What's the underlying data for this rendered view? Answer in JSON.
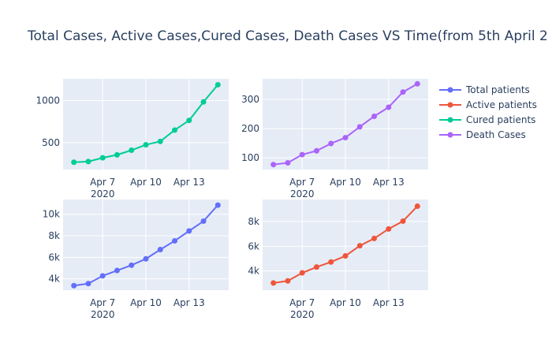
{
  "title": "Total Cases, Active Cases,Cured Cases, Death Cases VS Time(from 5th April 2",
  "legend": [
    {
      "name": "Total patients",
      "color": "#636efa"
    },
    {
      "name": "Active patients",
      "color": "#ef553b"
    },
    {
      "name": "Cured patients",
      "color": "#00cc96"
    },
    {
      "name": "Death Cases",
      "color": "#ab63fa"
    }
  ],
  "chart_data": [
    {
      "type": "line",
      "series": [
        {
          "name": "Cured patients",
          "color": "#00cc96"
        }
      ],
      "x": [
        "2020-04-05",
        "2020-04-06",
        "2020-04-07",
        "2020-04-08",
        "2020-04-09",
        "2020-04-10",
        "2020-04-11",
        "2020-04-12",
        "2020-04-13",
        "2020-04-14",
        "2020-04-15"
      ],
      "values": [
        267,
        275,
        320,
        355,
        410,
        475,
        515,
        650,
        765,
        985,
        1190
      ],
      "ylim": [
        180,
        1260
      ],
      "yticks": [
        500,
        1000
      ],
      "ytick_labels": [
        "500",
        "1000"
      ],
      "xticks": [
        "2020-04-07",
        "2020-04-10",
        "2020-04-13"
      ],
      "xtick_labels": [
        "Apr 7",
        "Apr 10",
        "Apr 13"
      ],
      "xtick_year": "2020",
      "grid": true,
      "legend": "right"
    },
    {
      "type": "line",
      "series": [
        {
          "name": "Death Cases",
          "color": "#ab63fa"
        }
      ],
      "x": [
        "2020-04-05",
        "2020-04-06",
        "2020-04-07",
        "2020-04-08",
        "2020-04-09",
        "2020-04-10",
        "2020-04-11",
        "2020-04-12",
        "2020-04-13",
        "2020-04-14",
        "2020-04-15"
      ],
      "values": [
        77,
        83,
        111,
        124,
        149,
        169,
        206,
        242,
        273,
        325,
        353
      ],
      "ylim": [
        60,
        370
      ],
      "yticks": [
        100,
        200,
        300
      ],
      "ytick_labels": [
        "100",
        "200",
        "300"
      ],
      "xticks": [
        "2020-04-07",
        "2020-04-10",
        "2020-04-13"
      ],
      "xtick_labels": [
        "Apr 7",
        "Apr 10",
        "Apr 13"
      ],
      "xtick_year": "2020",
      "grid": true,
      "legend": "right"
    },
    {
      "type": "line",
      "series": [
        {
          "name": "Total patients",
          "color": "#636efa"
        }
      ],
      "x": [
        "2020-04-05",
        "2020-04-06",
        "2020-04-07",
        "2020-04-08",
        "2020-04-09",
        "2020-04-10",
        "2020-04-11",
        "2020-04-12",
        "2020-04-13",
        "2020-04-14",
        "2020-04-15"
      ],
      "values": [
        3370,
        3560,
        4280,
        4780,
        5270,
        5860,
        6720,
        7530,
        8450,
        9360,
        10850
      ],
      "ylim": [
        2950,
        11370
      ],
      "yticks": [
        4000,
        6000,
        8000,
        10000
      ],
      "ytick_labels": [
        "4k",
        "6k",
        "8k",
        "10k"
      ],
      "xticks": [
        "2020-04-07",
        "2020-04-10",
        "2020-04-13"
      ],
      "xtick_labels": [
        "Apr 7",
        "Apr 10",
        "Apr 13"
      ],
      "xtick_year": "2020",
      "grid": true,
      "legend": "right"
    },
    {
      "type": "line",
      "series": [
        {
          "name": "Active patients",
          "color": "#ef553b"
        }
      ],
      "x": [
        "2020-04-05",
        "2020-04-06",
        "2020-04-07",
        "2020-04-08",
        "2020-04-09",
        "2020-04-10",
        "2020-04-11",
        "2020-04-12",
        "2020-04-13",
        "2020-04-14",
        "2020-04-15"
      ],
      "values": [
        3030,
        3200,
        3850,
        4320,
        4730,
        5220,
        6040,
        6630,
        7400,
        8030,
        9240
      ],
      "ylim": [
        2450,
        9780
      ],
      "yticks": [
        4000,
        6000,
        8000
      ],
      "ytick_labels": [
        "4k",
        "6k",
        "8k"
      ],
      "xticks": [
        "2020-04-07",
        "2020-04-10",
        "2020-04-13"
      ],
      "xtick_labels": [
        "Apr 7",
        "Apr 10",
        "Apr 13"
      ],
      "xtick_year": "2020",
      "grid": true,
      "legend": "right"
    }
  ]
}
